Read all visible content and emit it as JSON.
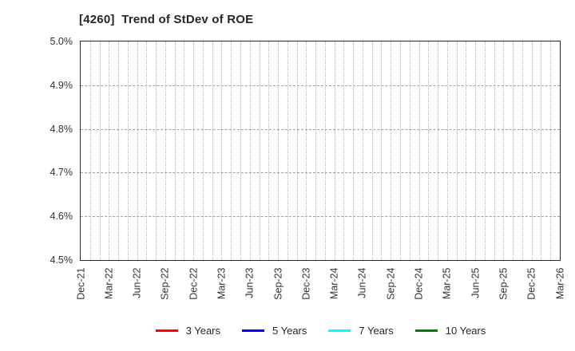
{
  "title": "[4260]  Trend of StDev of ROE",
  "chart_data": {
    "type": "line",
    "title": "[4260]  Trend of StDev of ROE",
    "x_tick_labels": [
      "Dec-21",
      "Mar-22",
      "Jun-22",
      "Sep-22",
      "Dec-22",
      "Mar-23",
      "Jun-23",
      "Sep-23",
      "Dec-23",
      "Mar-24",
      "Jun-24",
      "Sep-24",
      "Dec-24",
      "Mar-25",
      "Jun-25",
      "Sep-25",
      "Dec-25",
      "Mar-26"
    ],
    "y_tick_labels": [
      "4.5%",
      "4.6%",
      "4.7%",
      "4.8%",
      "4.9%",
      "5.0%"
    ],
    "ylim": [
      4.5,
      5.0
    ],
    "xlabel": "",
    "ylabel": "",
    "grid": true,
    "minor_x_gridlines": "monthly",
    "legend_position": "bottom",
    "series": [
      {
        "name": "3 Years",
        "color": "#ff0000",
        "values": []
      },
      {
        "name": "5 Years",
        "color": "#0000ff",
        "values": []
      },
      {
        "name": "7 Years",
        "color": "#00ffff",
        "values": []
      },
      {
        "name": "10 Years",
        "color": "#008000",
        "values": []
      }
    ],
    "note": "Plot area is empty - no data lines are drawn for any series"
  }
}
